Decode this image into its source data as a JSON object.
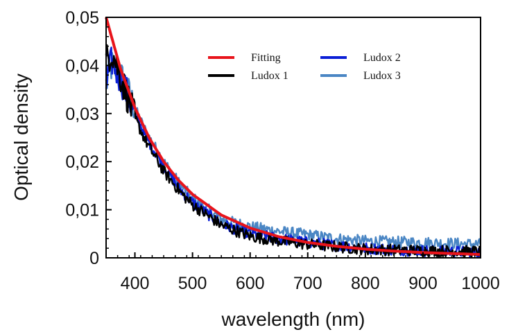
{
  "chart_data": {
    "type": "line",
    "title": "",
    "xlabel": "wavelength (nm)",
    "ylabel": "Optical density",
    "xlim": [
      350,
      1000
    ],
    "ylim": [
      0,
      0.05
    ],
    "x_ticks": [
      400,
      500,
      600,
      700,
      800,
      900,
      1000
    ],
    "x_tick_labels": [
      "400",
      "500",
      "600",
      "700",
      "800",
      "900",
      "1000"
    ],
    "y_ticks": [
      0,
      0.01,
      0.02,
      0.03,
      0.04,
      0.05
    ],
    "y_tick_labels": [
      "0",
      "0,01",
      "0,02",
      "0,03",
      "0,04",
      "0,05"
    ],
    "grid": false,
    "legend_position": "top-right",
    "series": [
      {
        "name": "Ludox 3",
        "color": "#4a86c4",
        "x": [
          350,
          360,
          380,
          400,
          420,
          450,
          480,
          500,
          550,
          600,
          650,
          700,
          750,
          800,
          850,
          900,
          950,
          1000
        ],
        "y": [
          0.036,
          0.04,
          0.037,
          0.031,
          0.026,
          0.02,
          0.015,
          0.0125,
          0.008,
          0.0065,
          0.0055,
          0.0048,
          0.004,
          0.0035,
          0.0033,
          0.0032,
          0.003,
          0.0028
        ]
      },
      {
        "name": "Ludox 2",
        "color": "#0b1fd6",
        "x": [
          350,
          360,
          380,
          400,
          420,
          450,
          480,
          500,
          550,
          600,
          650,
          700,
          750,
          800,
          850,
          900,
          950,
          1000
        ],
        "y": [
          0.036,
          0.041,
          0.036,
          0.03,
          0.025,
          0.019,
          0.014,
          0.0115,
          0.007,
          0.005,
          0.004,
          0.0032,
          0.0026,
          0.002,
          0.0017,
          0.0015,
          0.0013,
          0.0012
        ]
      },
      {
        "name": "Ludox 1",
        "color": "#000000",
        "x": [
          350,
          360,
          380,
          400,
          420,
          450,
          480,
          500,
          550,
          600,
          650,
          700,
          750,
          800,
          850,
          900,
          950,
          1000
        ],
        "y": [
          0.041,
          0.043,
          0.036,
          0.029,
          0.024,
          0.018,
          0.0135,
          0.011,
          0.0068,
          0.0045,
          0.0035,
          0.0028,
          0.0023,
          0.0018,
          0.0016,
          0.0015,
          0.0014,
          0.0013
        ]
      },
      {
        "name": "Fitting",
        "color": "#e8141b",
        "x": [
          350,
          375,
          400,
          425,
          450,
          475,
          500,
          550,
          600,
          650,
          700,
          750,
          800,
          850,
          900,
          950,
          1000
        ],
        "y": [
          0.05,
          0.0393,
          0.0312,
          0.0249,
          0.02,
          0.0162,
          0.0132,
          0.0089,
          0.0062,
          0.0044,
          0.0032,
          0.0024,
          0.0018,
          0.0014,
          0.0011,
          0.0009,
          0.0007
        ]
      }
    ],
    "legend": [
      {
        "name": "Fitting",
        "color": "#e8141b"
      },
      {
        "name": "Ludox 1",
        "color": "#000000"
      },
      {
        "name": "Ludox 2",
        "color": "#0b1fd6"
      },
      {
        "name": "Ludox 3",
        "color": "#4a86c4"
      }
    ]
  }
}
